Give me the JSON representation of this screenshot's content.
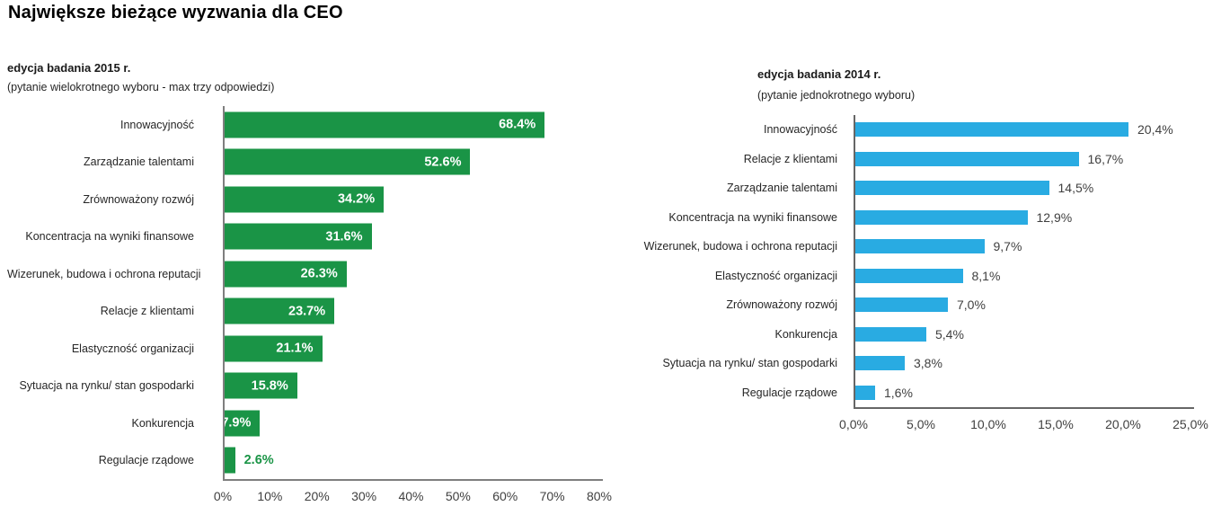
{
  "page": {
    "title": "Największe bieżące wyzwania dla CEO"
  },
  "chart_data": [
    {
      "type": "bar",
      "orientation": "horizontal",
      "title": "edycja badania 2015 r.",
      "subtitle": "(pytanie wielokrotnego wyboru - max trzy odpowiedzi)",
      "categories": [
        "Innowacyjność",
        "Zarządzanie talentami",
        "Zrównoważony rozwój",
        "Koncentracja na wyniki finansowe",
        "Wizerunek, budowa i ochrona reputacji",
        "Relacje z klientami",
        "Elastyczność organizacji",
        "Sytuacja na rynku/ stan gospodarki",
        "Konkurencja",
        "Regulacje rządowe"
      ],
      "values": [
        68.4,
        52.6,
        34.2,
        31.6,
        26.3,
        23.7,
        21.1,
        15.8,
        7.9,
        2.6
      ],
      "value_labels": [
        "68.4%",
        "52.6%",
        "34.2%",
        "31.6%",
        "26.3%",
        "23.7%",
        "21.1%",
        "15.8%",
        "7.9%",
        "2.6%"
      ],
      "value_label_positions": [
        "inside",
        "inside",
        "inside",
        "inside",
        "inside",
        "inside",
        "inside",
        "inside",
        "inside",
        "outside"
      ],
      "x_ticks": [
        "0%",
        "10%",
        "20%",
        "30%",
        "40%",
        "50%",
        "60%",
        "70%",
        "80%"
      ],
      "xlim": [
        0,
        80
      ],
      "xlabel": "",
      "ylabel": "",
      "grid": false,
      "legend": "none",
      "bar_color": "#1A9446",
      "inside_label_color": "#FFFFFF",
      "outside_label_color": "#1A9446",
      "axis_color": "#7F7F7F"
    },
    {
      "type": "bar",
      "orientation": "horizontal",
      "title": "edycja badania 2014 r.",
      "subtitle": "(pytanie jednokrotnego wyboru)",
      "categories": [
        "Innowacyjność",
        "Relacje z klientami",
        "Zarządzanie talentami",
        "Koncentracja na wyniki finansowe",
        "Wizerunek, budowa i ochrona reputacji",
        "Elastyczność organizacji",
        "Zrównoważony rozwój",
        "Konkurencja",
        "Sytuacja na rynku/ stan gospodarki",
        "Regulacje rządowe"
      ],
      "values": [
        20.4,
        16.7,
        14.5,
        12.9,
        9.7,
        8.1,
        7.0,
        5.4,
        3.8,
        1.6
      ],
      "value_labels": [
        "20,4%",
        "16,7%",
        "14,5%",
        "12,9%",
        "9,7%",
        "8,1%",
        "7,0%",
        "5,4%",
        "3,8%",
        "1,6%"
      ],
      "value_label_positions": [
        "outside",
        "outside",
        "outside",
        "outside",
        "outside",
        "outside",
        "outside",
        "outside",
        "outside",
        "outside"
      ],
      "x_ticks": [
        "0,0%",
        "5,0%",
        "10,0%",
        "15,0%",
        "20,0%",
        "25,0%"
      ],
      "xlim": [
        0,
        25
      ],
      "xlabel": "",
      "ylabel": "",
      "grid": false,
      "legend": "none",
      "bar_color": "#29ABE2",
      "inside_label_color": "#FFFFFF",
      "outside_label_color": "#404040",
      "axis_color": "#666666"
    }
  ]
}
